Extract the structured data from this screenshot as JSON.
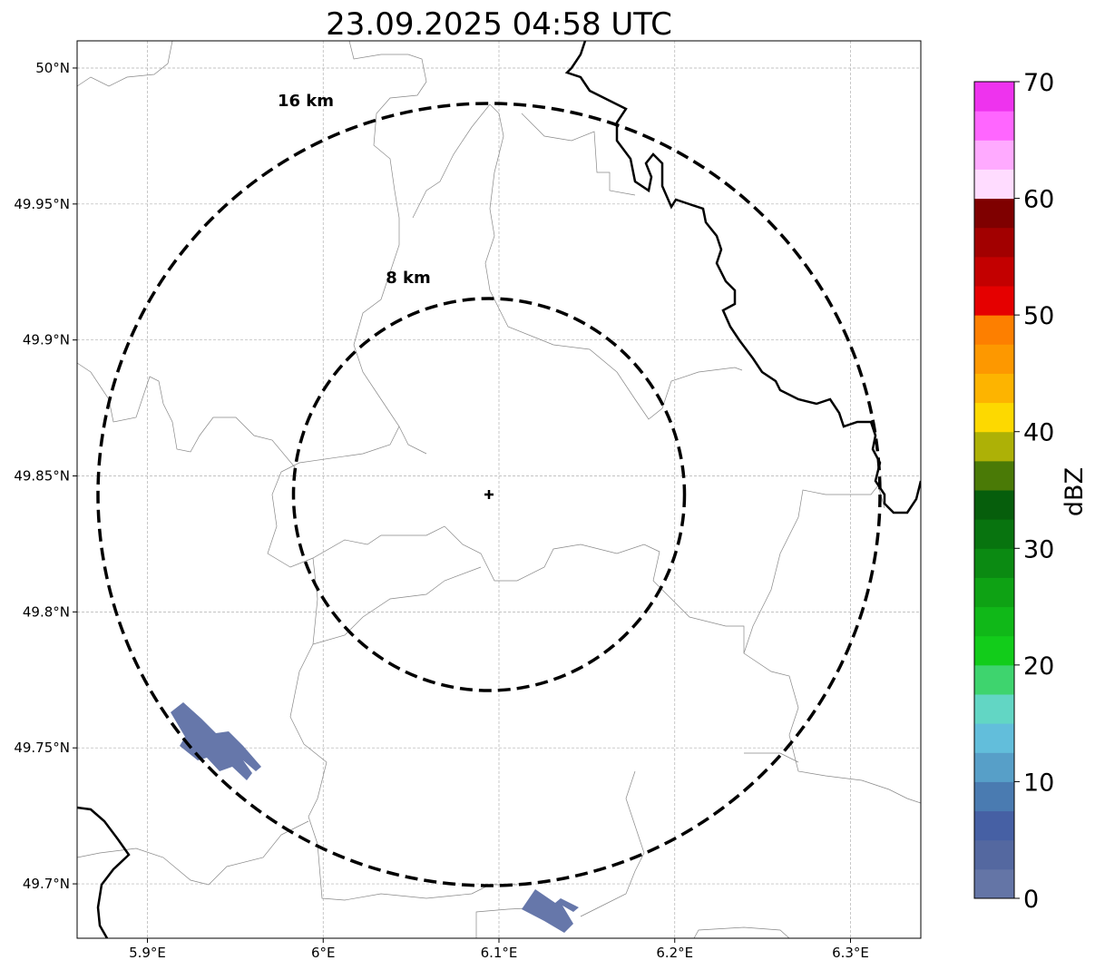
{
  "chart_data": {
    "type": "map",
    "title": "23.09.2025 04:58 UTC",
    "extent": {
      "lon": [
        5.86,
        6.34
      ],
      "lat": [
        49.68,
        50.01
      ]
    },
    "lon_ticks": [
      5.9,
      6.0,
      6.1,
      6.2,
      6.3
    ],
    "lon_tick_labels": [
      "5.9°E",
      "6°E",
      "6.1°E",
      "6.2°E",
      "6.3°E"
    ],
    "lat_ticks": [
      50.0,
      49.95,
      49.9,
      49.85,
      49.8,
      49.75,
      49.7
    ],
    "lat_tick_labels": [
      "50°N",
      "49.95°N",
      "49.9°N",
      "49.85°N",
      "49.8°N",
      "49.75°N",
      "49.7°N"
    ],
    "grid": true,
    "radar_center": {
      "lon": 6.094,
      "lat": 49.843
    },
    "range_rings": [
      {
        "radius_km": 8,
        "label": "8 km"
      },
      {
        "radius_km": 16,
        "label": "16 km"
      }
    ],
    "echoes": [
      {
        "area": "southwest near 16 km ring",
        "dbz": 1
      },
      {
        "area": "south beyond 16 km ring",
        "dbz": 1
      }
    ],
    "colorbar": {
      "label": "dBZ",
      "range": [
        0,
        70
      ],
      "ticks": [
        0,
        10,
        20,
        30,
        40,
        50,
        60,
        70
      ],
      "tick_labels": [
        "0",
        "10",
        "20",
        "30",
        "40",
        "50",
        "60",
        "70"
      ],
      "step": 2.5,
      "colors": [
        "#6475a6",
        "#5468a0",
        "#4660a4",
        "#4a7bb1",
        "#579fc8",
        "#62bedb",
        "#62d6c4",
        "#3ed46e",
        "#12cc1a",
        "#10b818",
        "#0ea214",
        "#0b8a12",
        "#08740f",
        "#065e0c",
        "#4a7a06",
        "#adb106",
        "#fdd900",
        "#fdb400",
        "#fd9800",
        "#fd7f00",
        "#e50000",
        "#c30000",
        "#a20000",
        "#7f0000",
        "#ffdcff",
        "#ffaaff",
        "#ff66ff",
        "#ee33ee"
      ]
    }
  }
}
